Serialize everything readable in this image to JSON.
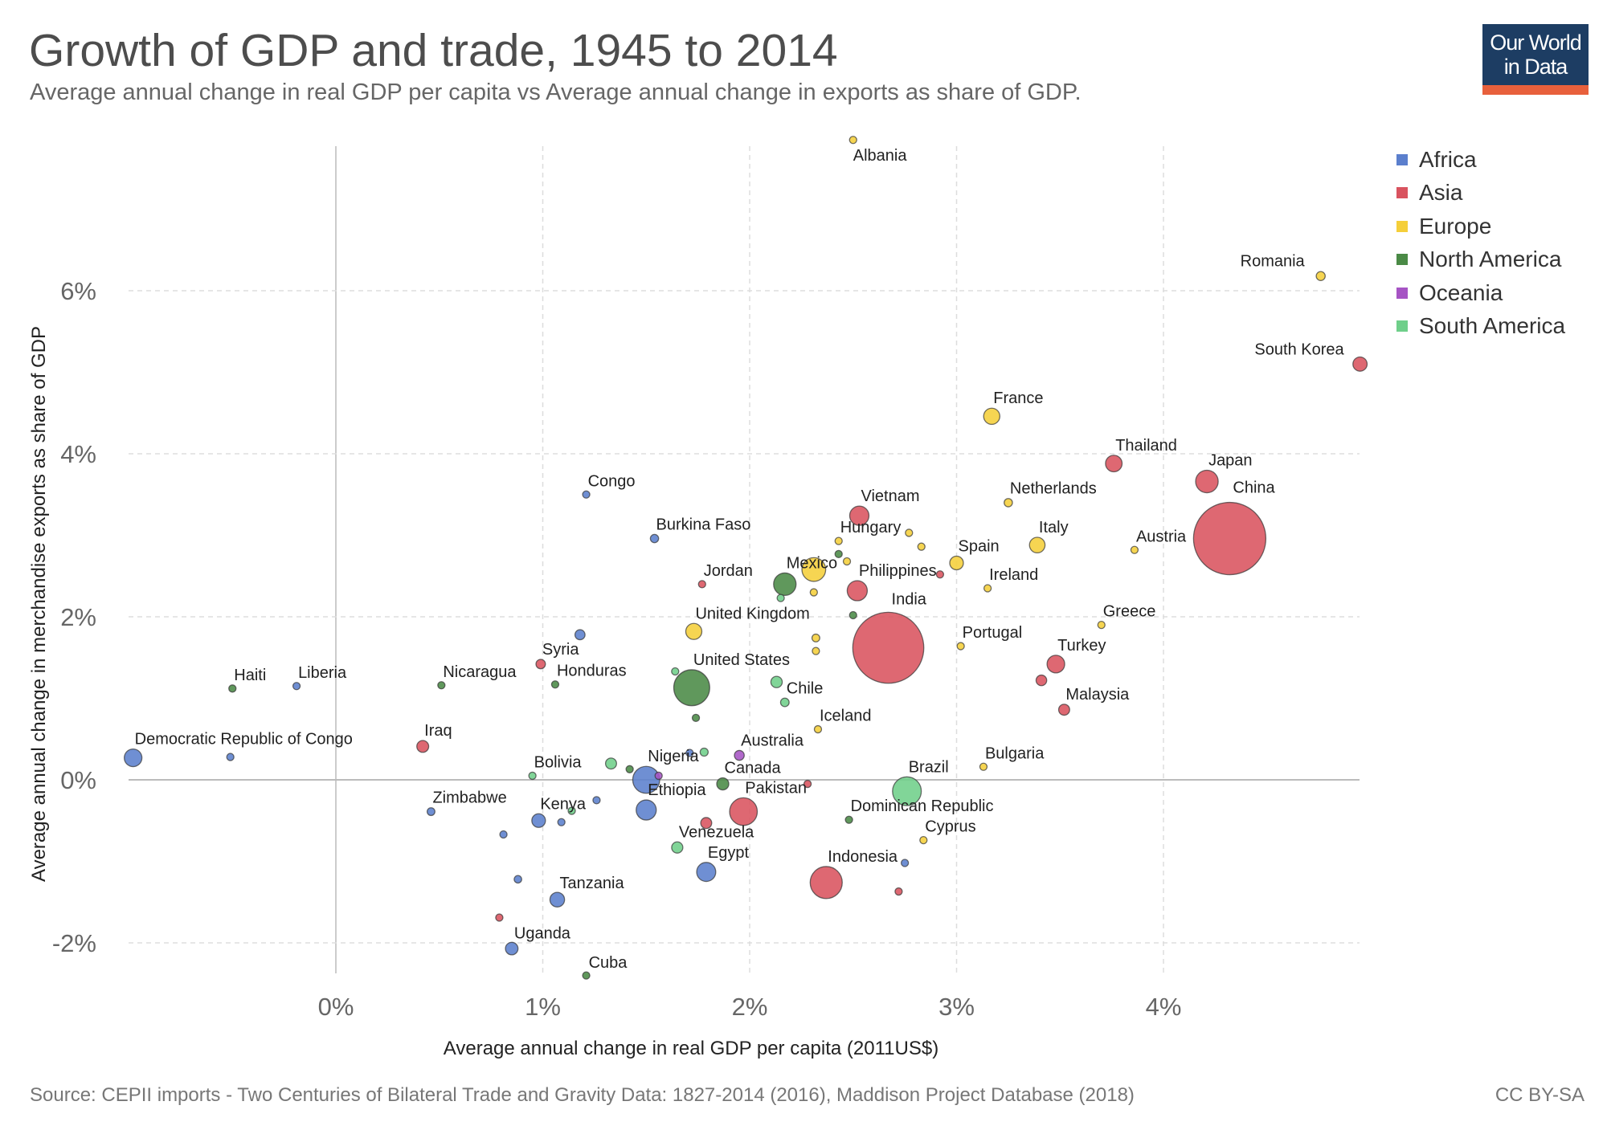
{
  "header": {
    "title": "Growth of GDP and trade, 1945 to 2014",
    "subtitle": "Average annual change in real GDP per capita vs Average annual change in exports as share of GDP."
  },
  "logo": {
    "line1": "Our World",
    "line2": "in Data"
  },
  "footer": {
    "source": "Source: CEPII imports - Two Centuries of Bilateral Trade and Gravity Data: 1827-2014 (2016), Maddison Project Database (2018)",
    "license": "CC BY-SA"
  },
  "colors": {
    "Africa": "#5b7fcd",
    "Asia": "#d9535f",
    "Europe": "#f5cf3a",
    "North America": "#4a8a46",
    "Oceania": "#a654c4",
    "South America": "#6fcf8a"
  },
  "chart_data": {
    "type": "scatter",
    "xlabel": "Average annual change in real GDP per capita (2011US$)",
    "ylabel": "Average annual change in merchandise exports as share of GDP",
    "xlim": [
      -1.0,
      4.95
    ],
    "ylim": [
      -2.5,
      7.9
    ],
    "x_ticks": [
      0,
      1,
      2,
      3,
      4
    ],
    "x_tick_labels": [
      "0%",
      "1%",
      "2%",
      "3%",
      "4%"
    ],
    "y_ticks": [
      -2,
      0,
      2,
      4,
      6
    ],
    "y_tick_labels": [
      "-2%",
      "0%",
      "2%",
      "4%",
      "6%"
    ],
    "grid": true,
    "legend": [
      "Africa",
      "Asia",
      "Europe",
      "North America",
      "Oceania",
      "South America"
    ],
    "points": [
      {
        "name": "Albania",
        "continent": "Europe",
        "x": 2.5,
        "y": 7.85,
        "size": 3
      },
      {
        "name": "Romania",
        "continent": "Europe",
        "x": 4.76,
        "y": 6.18,
        "size": 20
      },
      {
        "name": "South Korea",
        "continent": "Asia",
        "x": 4.95,
        "y": 5.1,
        "size": 50
      },
      {
        "name": "France",
        "continent": "Europe",
        "x": 3.17,
        "y": 4.46,
        "size": 65
      },
      {
        "name": "Thailand",
        "continent": "Asia",
        "x": 3.76,
        "y": 3.88,
        "size": 68
      },
      {
        "name": "Japan",
        "continent": "Asia",
        "x": 4.21,
        "y": 3.66,
        "size": 126
      },
      {
        "name": "China",
        "continent": "Asia",
        "x": 4.32,
        "y": 2.96,
        "size": 1370
      },
      {
        "name": "Netherlands",
        "continent": "Europe",
        "x": 3.25,
        "y": 3.4,
        "size": 17
      },
      {
        "name": "Italy",
        "continent": "Europe",
        "x": 3.39,
        "y": 2.88,
        "size": 60
      },
      {
        "name": "Austria",
        "continent": "Europe",
        "x": 3.86,
        "y": 2.82,
        "size": 8.5
      },
      {
        "name": "Vietnam",
        "continent": "Asia",
        "x": 2.53,
        "y": 3.24,
        "size": 92
      },
      {
        "name": "Hungary",
        "continent": "Europe",
        "x": 2.43,
        "y": 2.93,
        "size": 10
      },
      {
        "name": "Spain",
        "continent": "Europe",
        "x": 3.0,
        "y": 2.66,
        "size": 46
      },
      {
        "name": "Ireland",
        "continent": "Europe",
        "x": 3.15,
        "y": 2.35,
        "size": 4.6
      },
      {
        "name": "Mexico",
        "continent": "North America",
        "x": 2.17,
        "y": 2.4,
        "size": 125
      },
      {
        "name": "Philippines",
        "continent": "Asia",
        "x": 2.52,
        "y": 2.32,
        "size": 100
      },
      {
        "name": "Jordan",
        "continent": "Asia",
        "x": 1.77,
        "y": 2.4,
        "size": 6.6
      },
      {
        "name": "Congo",
        "continent": "Africa",
        "x": 1.21,
        "y": 3.5,
        "size": 4.5
      },
      {
        "name": "Burkina Faso",
        "continent": "Africa",
        "x": 1.54,
        "y": 2.96,
        "size": 17
      },
      {
        "name": "United Kingdom",
        "continent": "Europe",
        "x": 1.73,
        "y": 1.82,
        "size": 64
      },
      {
        "name": "India",
        "continent": "Asia",
        "x": 2.67,
        "y": 1.62,
        "size": 1250
      },
      {
        "name": "Greece",
        "continent": "Europe",
        "x": 3.7,
        "y": 1.9,
        "size": 11
      },
      {
        "name": "Portugal",
        "continent": "Europe",
        "x": 3.02,
        "y": 1.64,
        "size": 10
      },
      {
        "name": "Turkey",
        "continent": "Asia",
        "x": 3.48,
        "y": 1.42,
        "size": 77
      },
      {
        "name": "Malaysia",
        "continent": "Asia",
        "x": 3.52,
        "y": 0.86,
        "size": 30
      },
      {
        "name": "Syria",
        "continent": "Asia",
        "x": 0.99,
        "y": 1.42,
        "size": 22
      },
      {
        "name": "Haiti",
        "continent": "North America",
        "x": -0.5,
        "y": 1.12,
        "size": 10
      },
      {
        "name": "Liberia",
        "continent": "Africa",
        "x": -0.19,
        "y": 1.15,
        "size": 4.4
      },
      {
        "name": "Nicaragua",
        "continent": "North America",
        "x": 0.51,
        "y": 1.16,
        "size": 6
      },
      {
        "name": "Honduras",
        "continent": "North America",
        "x": 1.06,
        "y": 1.17,
        "size": 8
      },
      {
        "name": "United States",
        "continent": "North America",
        "x": 1.72,
        "y": 1.13,
        "size": 320
      },
      {
        "name": "Chile",
        "continent": "South America",
        "x": 2.17,
        "y": 0.95,
        "size": 18
      },
      {
        "name": "Iceland",
        "continent": "Europe",
        "x": 2.33,
        "y": 0.62,
        "size": 0.3
      },
      {
        "name": "Democratic Republic of Congo",
        "continent": "Africa",
        "x": -0.98,
        "y": 0.27,
        "size": 77
      },
      {
        "name": "Iraq",
        "continent": "Asia",
        "x": 0.42,
        "y": 0.41,
        "size": 35
      },
      {
        "name": "Bolivia",
        "continent": "South America",
        "x": 0.95,
        "y": 0.05,
        "size": 11
      },
      {
        "name": "Nigeria",
        "continent": "Africa",
        "x": 1.5,
        "y": 0.0,
        "size": 180
      },
      {
        "name": "Australia",
        "continent": "Oceania",
        "x": 1.95,
        "y": 0.3,
        "size": 24
      },
      {
        "name": "Canada",
        "continent": "North America",
        "x": 1.87,
        "y": -0.05,
        "size": 36
      },
      {
        "name": "Brazil",
        "continent": "South America",
        "x": 2.76,
        "y": -0.14,
        "size": 205
      },
      {
        "name": "Bulgaria",
        "continent": "Europe",
        "x": 3.13,
        "y": 0.16,
        "size": 7
      },
      {
        "name": "Zimbabwe",
        "continent": "Africa",
        "x": 0.46,
        "y": -0.39,
        "size": 15
      },
      {
        "name": "Kenya",
        "continent": "Africa",
        "x": 0.98,
        "y": -0.5,
        "size": 46
      },
      {
        "name": "Ethiopia",
        "continent": "Africa",
        "x": 1.5,
        "y": -0.37,
        "size": 100
      },
      {
        "name": "Pakistan",
        "continent": "Asia",
        "x": 1.97,
        "y": -0.39,
        "size": 190
      },
      {
        "name": "Dominican Republic",
        "continent": "North America",
        "x": 2.48,
        "y": -0.49,
        "size": 10
      },
      {
        "name": "Cyprus",
        "continent": "Europe",
        "x": 2.84,
        "y": -0.74,
        "size": 1
      },
      {
        "name": "Venezuela",
        "continent": "South America",
        "x": 1.65,
        "y": -0.83,
        "size": 31
      },
      {
        "name": "Egypt",
        "continent": "Africa",
        "x": 1.79,
        "y": -1.13,
        "size": 90
      },
      {
        "name": "Indonesia",
        "continent": "Asia",
        "x": 2.37,
        "y": -1.26,
        "size": 255
      },
      {
        "name": "Tanzania",
        "continent": "Africa",
        "x": 1.07,
        "y": -1.47,
        "size": 53
      },
      {
        "name": "Uganda",
        "continent": "Africa",
        "x": 0.85,
        "y": -2.07,
        "size": 39
      },
      {
        "name": "Cuba",
        "continent": "North America",
        "x": 1.21,
        "y": -2.4,
        "size": 11
      },
      {
        "name": "",
        "continent": "Africa",
        "x": -0.51,
        "y": 0.28,
        "size": 5
      },
      {
        "name": "",
        "continent": "Africa",
        "x": 1.18,
        "y": 1.78,
        "size": 25
      },
      {
        "name": "",
        "continent": "Africa",
        "x": 0.81,
        "y": -0.67,
        "size": 4
      },
      {
        "name": "",
        "continent": "Africa",
        "x": 1.09,
        "y": -0.52,
        "size": 9
      },
      {
        "name": "",
        "continent": "Africa",
        "x": 1.26,
        "y": -0.25,
        "size": 8
      },
      {
        "name": "",
        "continent": "Africa",
        "x": 0.88,
        "y": -1.22,
        "size": 14
      },
      {
        "name": "",
        "continent": "Africa",
        "x": 1.71,
        "y": 0.33,
        "size": 12
      },
      {
        "name": "",
        "continent": "Africa",
        "x": 2.75,
        "y": -1.02,
        "size": 1
      },
      {
        "name": "",
        "continent": "Asia",
        "x": 1.79,
        "y": -0.53,
        "size": 30
      },
      {
        "name": "",
        "continent": "Asia",
        "x": 2.28,
        "y": -0.05,
        "size": 13
      },
      {
        "name": "",
        "continent": "Asia",
        "x": 2.72,
        "y": -1.37,
        "size": 9
      },
      {
        "name": "",
        "continent": "Asia",
        "x": 0.79,
        "y": -1.69,
        "size": 2
      },
      {
        "name": "",
        "continent": "Asia",
        "x": 3.41,
        "y": 1.22,
        "size": 28
      },
      {
        "name": "",
        "continent": "Asia",
        "x": 2.92,
        "y": 2.52,
        "size": 4
      },
      {
        "name": "",
        "continent": "Europe",
        "x": 2.31,
        "y": 2.58,
        "size": 140
      },
      {
        "name": "",
        "continent": "Europe",
        "x": 2.47,
        "y": 2.68,
        "size": 2
      },
      {
        "name": "",
        "continent": "Europe",
        "x": 2.31,
        "y": 2.3,
        "size": 2
      },
      {
        "name": "",
        "continent": "Europe",
        "x": 2.32,
        "y": 1.74,
        "size": 15
      },
      {
        "name": "",
        "continent": "Europe",
        "x": 2.32,
        "y": 1.58,
        "size": 6
      },
      {
        "name": "",
        "continent": "Europe",
        "x": 2.77,
        "y": 3.03,
        "size": 1
      },
      {
        "name": "",
        "continent": "Europe",
        "x": 2.83,
        "y": 2.86,
        "size": 1
      },
      {
        "name": "",
        "continent": "South America",
        "x": 2.15,
        "y": 2.23,
        "size": 10
      },
      {
        "name": "",
        "continent": "South America",
        "x": 2.13,
        "y": 1.2,
        "size": 32
      },
      {
        "name": "",
        "continent": "South America",
        "x": 1.33,
        "y": 0.2,
        "size": 30
      },
      {
        "name": "",
        "continent": "South America",
        "x": 1.78,
        "y": 0.34,
        "size": 16
      },
      {
        "name": "",
        "continent": "South America",
        "x": 1.64,
        "y": 1.33,
        "size": 3
      },
      {
        "name": "",
        "continent": "South America",
        "x": 1.14,
        "y": -0.38,
        "size": 1
      },
      {
        "name": "",
        "continent": "North America",
        "x": 1.42,
        "y": 0.13,
        "size": 6
      },
      {
        "name": "",
        "continent": "North America",
        "x": 1.74,
        "y": 0.76,
        "size": 2
      },
      {
        "name": "",
        "continent": "North America",
        "x": 2.43,
        "y": 2.77,
        "size": 2
      },
      {
        "name": "",
        "continent": "North America",
        "x": 2.5,
        "y": 2.02,
        "size": 2
      },
      {
        "name": "",
        "continent": "Oceania",
        "x": 1.56,
        "y": 0.05,
        "size": 1
      }
    ]
  }
}
